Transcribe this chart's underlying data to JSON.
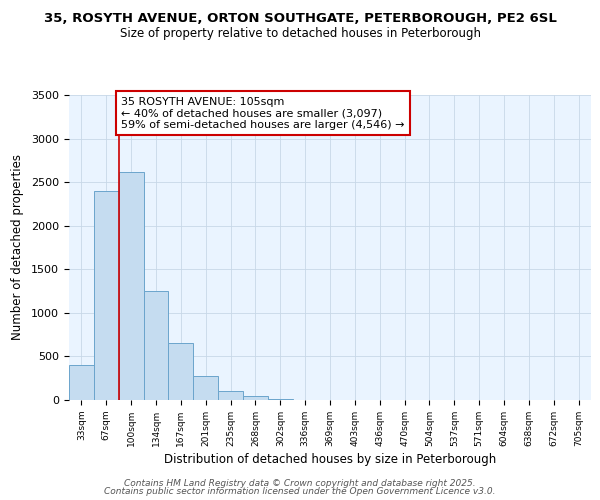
{
  "title_line1": "35, ROSYTH AVENUE, ORTON SOUTHGATE, PETERBOROUGH, PE2 6SL",
  "title_line2": "Size of property relative to detached houses in Peterborough",
  "xlabel": "Distribution of detached houses by size in Peterborough",
  "ylabel": "Number of detached properties",
  "annotation_title": "35 ROSYTH AVENUE: 105sqm",
  "annotation_line1": "← 40% of detached houses are smaller (3,097)",
  "annotation_line2": "59% of semi-detached houses are larger (4,546) →",
  "bar_color": "#C5DCF0",
  "bar_edge_color": "#6BA4CC",
  "marker_color": "#CC0000",
  "annotation_box_color": "#CC0000",
  "annotation_bg": "#FFFFFF",
  "footer_line1": "Contains HM Land Registry data © Crown copyright and database right 2025.",
  "footer_line2": "Contains public sector information licensed under the Open Government Licence v3.0.",
  "categories": [
    "33sqm",
    "67sqm",
    "100sqm",
    "134sqm",
    "167sqm",
    "201sqm",
    "235sqm",
    "268sqm",
    "302sqm",
    "336sqm",
    "369sqm",
    "403sqm",
    "436sqm",
    "470sqm",
    "504sqm",
    "537sqm",
    "571sqm",
    "604sqm",
    "638sqm",
    "672sqm",
    "705sqm"
  ],
  "values": [
    400,
    2400,
    2620,
    1250,
    650,
    270,
    100,
    50,
    10,
    3,
    0,
    0,
    0,
    0,
    0,
    0,
    0,
    0,
    0,
    0,
    0
  ],
  "ylim": [
    0,
    3500
  ],
  "yticks": [
    0,
    500,
    1000,
    1500,
    2000,
    2500,
    3000,
    3500
  ],
  "property_bin_index": 2,
  "fig_bg_color": "#FFFFFF",
  "plot_bg_color": "#EAF4FF",
  "grid_color": "#C8D8E8"
}
